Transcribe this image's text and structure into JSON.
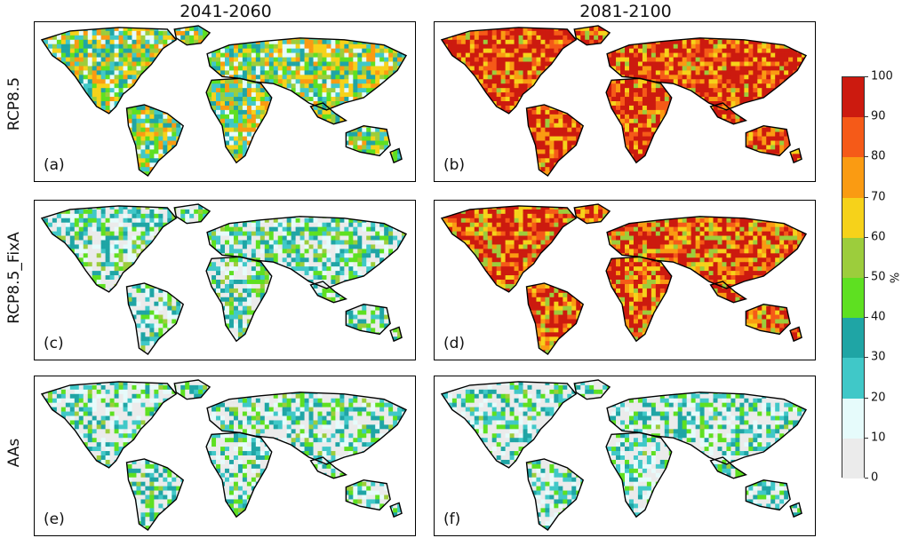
{
  "columns": [
    "2041-2060",
    "2081-2100"
  ],
  "rows": [
    "RCP8.5",
    "RCP8.5_FixA",
    "AAs"
  ],
  "panels": [
    {
      "label": "(a)",
      "scenario": "RCP8.5",
      "period": "2041-2060",
      "intensity": 0.45
    },
    {
      "label": "(b)",
      "scenario": "RCP8.5",
      "period": "2081-2100",
      "intensity": 0.92
    },
    {
      "label": "(c)",
      "scenario": "RCP8.5_FixA",
      "period": "2041-2060",
      "intensity": 0.22
    },
    {
      "label": "(d)",
      "scenario": "RCP8.5_FixA",
      "period": "2081-2100",
      "intensity": 0.85
    },
    {
      "label": "(e)",
      "scenario": "AAs",
      "period": "2041-2060",
      "intensity": 0.18
    },
    {
      "label": "(f)",
      "scenario": "AAs",
      "period": "2081-2100",
      "intensity": 0.16
    }
  ],
  "colorbar": {
    "unit": "%",
    "ticks": [
      "0",
      "10",
      "20",
      "30",
      "40",
      "50",
      "60",
      "70",
      "80",
      "90",
      "100"
    ],
    "colors": [
      "#ebebeb",
      "#e6fbfb",
      "#40c8c8",
      "#1fa5a5",
      "#5ee021",
      "#9ccd3c",
      "#f6d21a",
      "#fa9b12",
      "#f55a18",
      "#cc1a0f"
    ]
  }
}
